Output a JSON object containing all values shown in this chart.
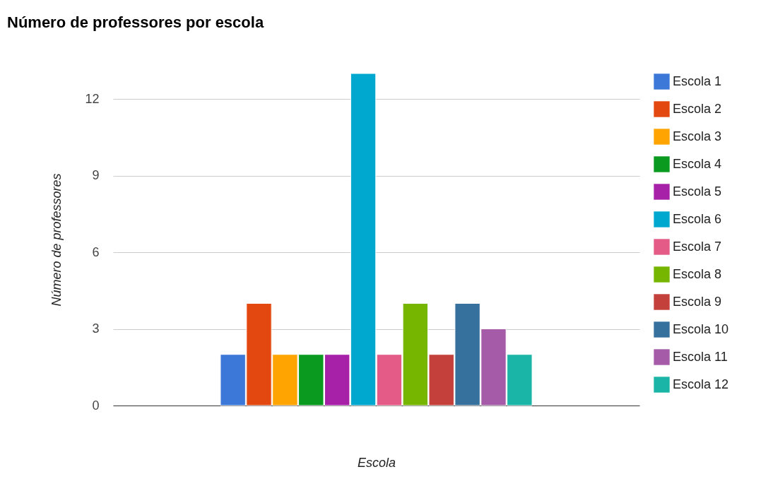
{
  "chart_data": {
    "type": "bar",
    "title": "Número de professores por escola",
    "xlabel": "Escola",
    "ylabel": "Número de professores",
    "categories": [
      null
    ],
    "series": [
      {
        "name": "Escola 1",
        "color": "#3c78d8",
        "values": [
          2
        ]
      },
      {
        "name": "Escola 2",
        "color": "#e2480f",
        "values": [
          4
        ]
      },
      {
        "name": "Escola 3",
        "color": "#ffa400",
        "values": [
          2
        ]
      },
      {
        "name": "Escola 4",
        "color": "#0a9a20",
        "values": [
          2
        ]
      },
      {
        "name": "Escola 5",
        "color": "#a621a8",
        "values": [
          2
        ]
      },
      {
        "name": "Escola 6",
        "color": "#00a8d0",
        "values": [
          13
        ]
      },
      {
        "name": "Escola 7",
        "color": "#e35b86",
        "values": [
          2
        ]
      },
      {
        "name": "Escola 8",
        "color": "#76b500",
        "values": [
          4
        ]
      },
      {
        "name": "Escola 9",
        "color": "#c4403a",
        "values": [
          2
        ]
      },
      {
        "name": "Escola 10",
        "color": "#36709c",
        "values": [
          4
        ]
      },
      {
        "name": "Escola 11",
        "color": "#a65ba8",
        "values": [
          3
        ]
      },
      {
        "name": "Escola 12",
        "color": "#1ab5a7",
        "values": [
          2
        ]
      }
    ],
    "ylim": [
      0,
      13
    ],
    "yticks": [
      0,
      3,
      6,
      9,
      12
    ],
    "grid": "y",
    "legend": "top right"
  }
}
